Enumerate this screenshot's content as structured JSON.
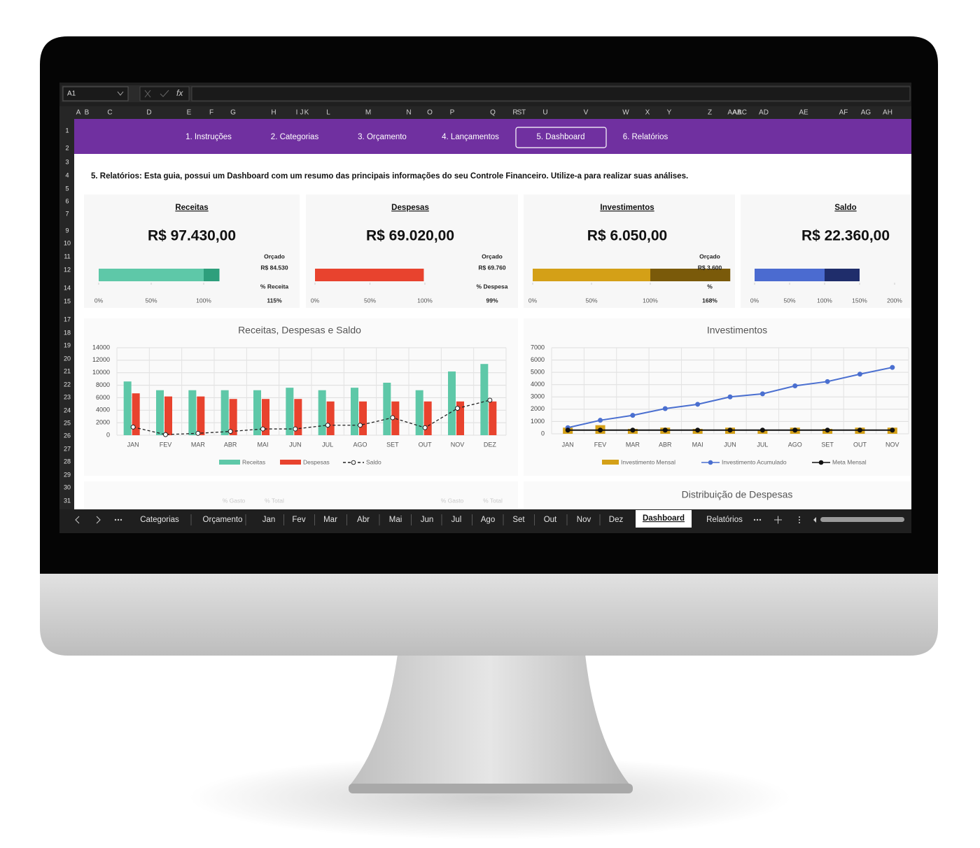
{
  "toolbar": {
    "name_box": "A1",
    "function_icon": "fx"
  },
  "column_headers": [
    "A",
    "B",
    "C",
    "D",
    "E",
    "F",
    "G",
    "H",
    "I",
    "J",
    "K",
    "L",
    "M",
    "N",
    "O",
    "P",
    "Q",
    "R",
    "S",
    "T",
    "U",
    "V",
    "W",
    "X",
    "Y",
    "Z",
    "AA",
    "AB",
    "AC",
    "AD",
    "AE",
    "AF",
    "AG",
    "AH"
  ],
  "row_headers": [
    1,
    2,
    3,
    4,
    5,
    6,
    7,
    9,
    10,
    11,
    12,
    14,
    15,
    17,
    18,
    19,
    20,
    21,
    22,
    23,
    24,
    25,
    26,
    27,
    28,
    29,
    30,
    31
  ],
  "nav": {
    "tabs": [
      "1. Instruções",
      "2. Categorias",
      "3. Orçamento",
      "4. Lançamentos",
      "5. Dashboard",
      "6. Relatórios"
    ],
    "active": 4
  },
  "description": "5. Relatórios: Esta guia, possui um Dashboard com um resumo das principais informações do seu Controle Financeiro. Utilize-a para realizar suas análises.",
  "kpis": [
    {
      "title": "Receitas",
      "value": "R$ 97.430,00",
      "budget_label": "Orçado",
      "budget": "R$ 84.530",
      "percent_caption": "% Receita",
      "percent": 115,
      "percent_label": "115%",
      "xlim": [
        0,
        125
      ],
      "xticks": [
        {
          "value": 0,
          "label": "0%"
        },
        {
          "value": 50,
          "label": "50%"
        },
        {
          "value": 100,
          "label": "100%"
        }
      ],
      "color": "#5ec8a8",
      "dark_color": "#2e9f7c"
    },
    {
      "title": "Despesas",
      "value": "R$ 69.020,00",
      "budget_label": "Orçado",
      "budget": "R$ 69.760",
      "percent_caption": "% Despesa",
      "percent": 99,
      "percent_label": "99%",
      "xlim": [
        0,
        100
      ],
      "xticks": [
        {
          "value": 0,
          "label": "0%"
        },
        {
          "value": 50,
          "label": "50%"
        },
        {
          "value": 100,
          "label": "100%"
        }
      ],
      "color": "#e8432e",
      "dark_color": "#b8301f"
    },
    {
      "title": "Investimentos",
      "value": "R$ 6.050,00",
      "budget_label": "Orçado",
      "budget": "R$ 3.600",
      "percent_caption": "%",
      "percent": 168,
      "percent_label": "168%",
      "xlim": [
        0,
        170
      ],
      "xticks": [
        {
          "value": 0,
          "label": "0%"
        },
        {
          "value": 50,
          "label": "50%"
        },
        {
          "value": 100,
          "label": "100%"
        }
      ],
      "color": "#d4a017",
      "dark_color": "#7a5a0a"
    },
    {
      "title": "Saldo",
      "value": "R$ 22.360,00",
      "percent": 150,
      "xlim": [
        0,
        200
      ],
      "xticks": [
        {
          "value": 0,
          "label": "0%"
        },
        {
          "value": 50,
          "label": "50%"
        },
        {
          "value": 100,
          "label": "100%"
        },
        {
          "value": 150,
          "label": "150%"
        },
        {
          "value": 200,
          "label": "200%"
        }
      ],
      "color": "#4b6bd0",
      "dark_color": "#1f2d6b"
    }
  ],
  "chart_data": [
    {
      "type": "bar",
      "title": "Receitas, Despesas e Saldo",
      "categories": [
        "JAN",
        "FEV",
        "MAR",
        "ABR",
        "MAI",
        "JUN",
        "JUL",
        "AGO",
        "SET",
        "OUT",
        "NOV",
        "DEZ"
      ],
      "series": [
        {
          "name": "Receitas",
          "type": "bar",
          "color": "#5ec8a8",
          "values": [
            8600,
            7200,
            7200,
            7200,
            7200,
            7600,
            7200,
            7600,
            8400,
            7200,
            10200,
            11400
          ]
        },
        {
          "name": "Despesas",
          "type": "bar",
          "color": "#e8432e",
          "values": [
            6700,
            6200,
            6200,
            5800,
            5800,
            5800,
            5400,
            5400,
            5400,
            5400,
            5400,
            5400
          ]
        },
        {
          "name": "Saldo",
          "type": "line",
          "color": "#222222",
          "dashed": true,
          "values": [
            1300,
            100,
            300,
            600,
            1000,
            1000,
            1600,
            1600,
            2800,
            1200,
            4300,
            5600
          ]
        }
      ],
      "ylim": [
        0,
        14000
      ],
      "yticks": [
        0,
        2000,
        4000,
        6000,
        8000,
        10000,
        12000,
        14000
      ],
      "grid": true
    },
    {
      "type": "line",
      "title": "Investimentos",
      "categories": [
        "JAN",
        "FEV",
        "MAR",
        "ABR",
        "MAI",
        "JUN",
        "JUL",
        "AGO",
        "SET",
        "OUT",
        "NOV"
      ],
      "series": [
        {
          "name": "Investimento Mensal",
          "type": "bar",
          "color": "#d4a017",
          "values": [
            500,
            700,
            400,
            500,
            400,
            500,
            300,
            500,
            400,
            500,
            500
          ]
        },
        {
          "name": "Investimento Acumulado",
          "type": "line",
          "color": "#4a6fd0",
          "values": [
            500,
            1100,
            1500,
            2050,
            2400,
            3000,
            3250,
            3900,
            4250,
            4850,
            5400
          ]
        },
        {
          "name": "Meta Mensal",
          "type": "line",
          "color": "#111111",
          "values": [
            300,
            300,
            300,
            300,
            300,
            300,
            300,
            300,
            300,
            300,
            300
          ]
        }
      ],
      "ylim": [
        0,
        7000
      ],
      "yticks": [
        0,
        1000,
        2000,
        3000,
        4000,
        5000,
        6000,
        7000
      ],
      "grid": true
    }
  ],
  "distribution": {
    "title": "Distribuição de Despesas",
    "labels": [
      "% Gasto",
      "% Total",
      "% Gasto",
      "% Total"
    ]
  },
  "sheet_tabs": {
    "tabs": [
      "Categorias",
      "Orçamento",
      "Jan",
      "Fev",
      "Mar",
      "Abr",
      "Mai",
      "Jun",
      "Jul",
      "Ago",
      "Set",
      "Out",
      "Nov",
      "Dez",
      "Dashboard",
      "Relatórios"
    ],
    "active": 14
  }
}
